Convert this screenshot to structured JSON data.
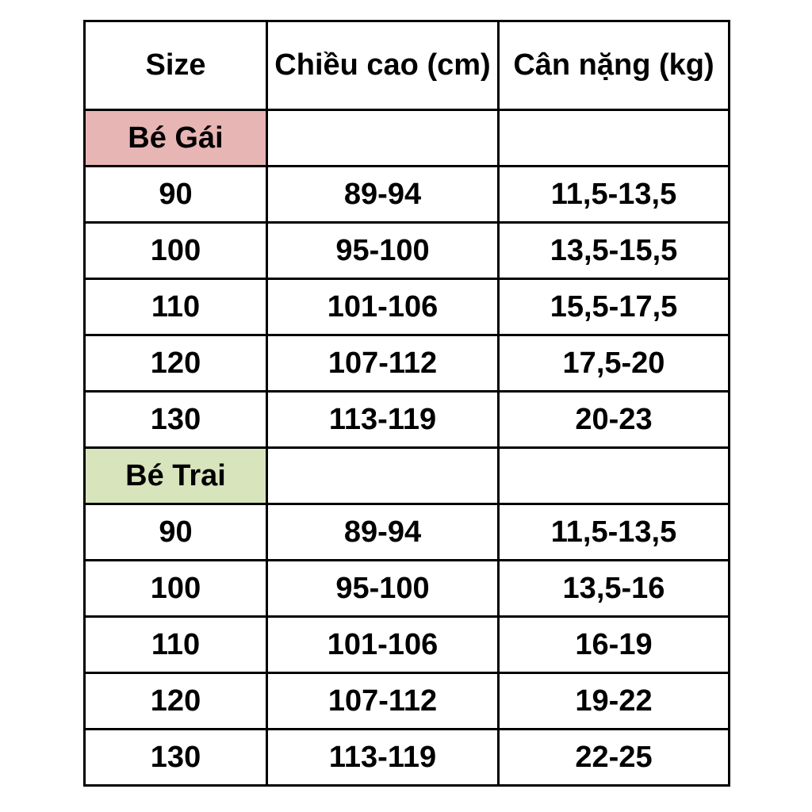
{
  "chart_data": {
    "type": "table",
    "columns": [
      "Size",
      "Chiều cao (cm)",
      "Cân nặng (kg)"
    ],
    "sections": [
      {
        "label": "Bé Gái",
        "label_bg": "#e7b5b4",
        "rows": [
          [
            "90",
            "89-94",
            "11,5-13,5"
          ],
          [
            "100",
            "95-100",
            "13,5-15,5"
          ],
          [
            "110",
            "101-106",
            "15,5-17,5"
          ],
          [
            "120",
            "107-112",
            "17,5-20"
          ],
          [
            "130",
            "113-119",
            "20-23"
          ]
        ]
      },
      {
        "label": "Bé Trai",
        "label_bg": "#d8e4bc",
        "rows": [
          [
            "90",
            "89-94",
            "11,5-13,5"
          ],
          [
            "100",
            "95-100",
            "13,5-16"
          ],
          [
            "110",
            "101-106",
            "16-19"
          ],
          [
            "120",
            "107-112",
            "19-22"
          ],
          [
            "130",
            "113-119",
            "22-25"
          ]
        ]
      }
    ]
  },
  "colors": {
    "border": "#000000",
    "background": "#ffffff",
    "girl_section_bg": "#e7b5b4",
    "boy_section_bg": "#d8e4bc",
    "text": "#000000"
  }
}
